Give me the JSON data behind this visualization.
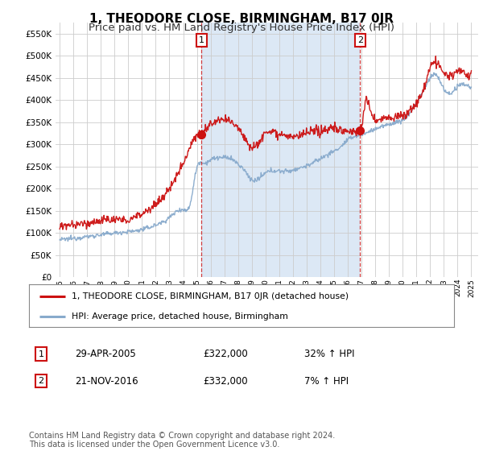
{
  "title": "1, THEODORE CLOSE, BIRMINGHAM, B17 0JR",
  "subtitle": "Price paid vs. HM Land Registry's House Price Index (HPI)",
  "title_fontsize": 11,
  "subtitle_fontsize": 9.5,
  "background_color": "#ffffff",
  "plot_bg_color": "#dce8f5",
  "plot_bg_color2": "#ffffff",
  "red_color": "#cc1111",
  "blue_color": "#88aacc",
  "ylim": [
    0,
    575000
  ],
  "yticks": [
    0,
    50000,
    100000,
    150000,
    200000,
    250000,
    300000,
    350000,
    400000,
    450000,
    500000,
    550000
  ],
  "marker1_x": 2005.33,
  "marker1_y": 322000,
  "marker2_x": 2016.9,
  "marker2_y": 332000,
  "legend_line1": "1, THEODORE CLOSE, BIRMINGHAM, B17 0JR (detached house)",
  "legend_line2": "HPI: Average price, detached house, Birmingham",
  "table_row1": [
    "1",
    "29-APR-2005",
    "£322,000",
    "32% ↑ HPI"
  ],
  "table_row2": [
    "2",
    "21-NOV-2016",
    "£332,000",
    "7% ↑ HPI"
  ],
  "footnote": "Contains HM Land Registry data © Crown copyright and database right 2024.\nThis data is licensed under the Open Government Licence v3.0.",
  "footnote_fontsize": 7,
  "xlim_left": 1994.7,
  "xlim_right": 2025.5
}
